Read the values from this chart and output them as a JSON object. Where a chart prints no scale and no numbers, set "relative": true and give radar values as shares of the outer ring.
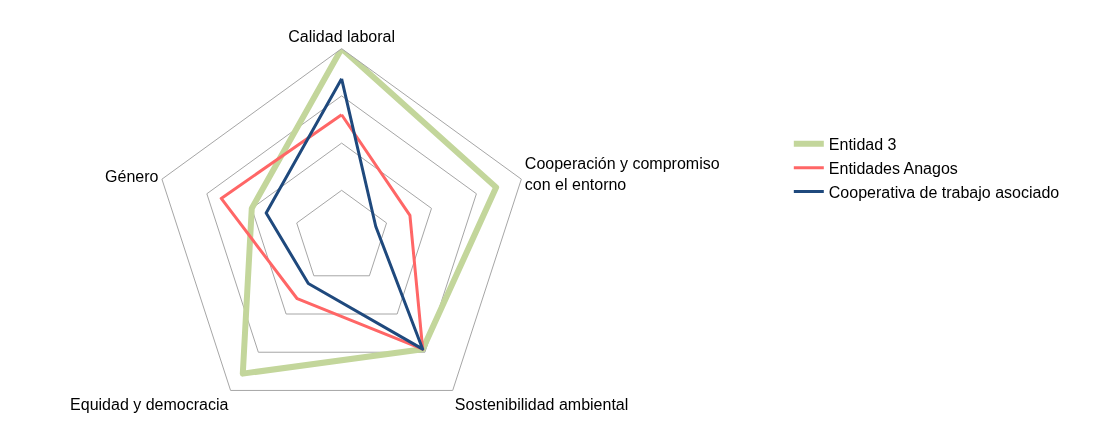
{
  "chart_data": {
    "type": "radar",
    "relative": true,
    "grid": true,
    "legend": "right",
    "marker": "none",
    "categories": [
      "Calidad laboral",
      "Cooperación y compromiso con el entorno",
      "Sostenibilidad ambiental",
      "Equidad y democracia",
      "Género"
    ],
    "series": [
      {
        "name": "Entidad 3",
        "color": "#c3d69b",
        "values": [
          1.0,
          0.86,
          0.73,
          0.89,
          0.5
        ]
      },
      {
        "name": "Entidades Anagos",
        "color": "#ff6666",
        "values": [
          0.65,
          0.38,
          0.73,
          0.4,
          0.67
        ]
      },
      {
        "name": "Cooperativa de trabajo asociado",
        "color": "#1f497d",
        "values": [
          0.84,
          0.19,
          0.73,
          0.3,
          0.42
        ]
      }
    ]
  }
}
